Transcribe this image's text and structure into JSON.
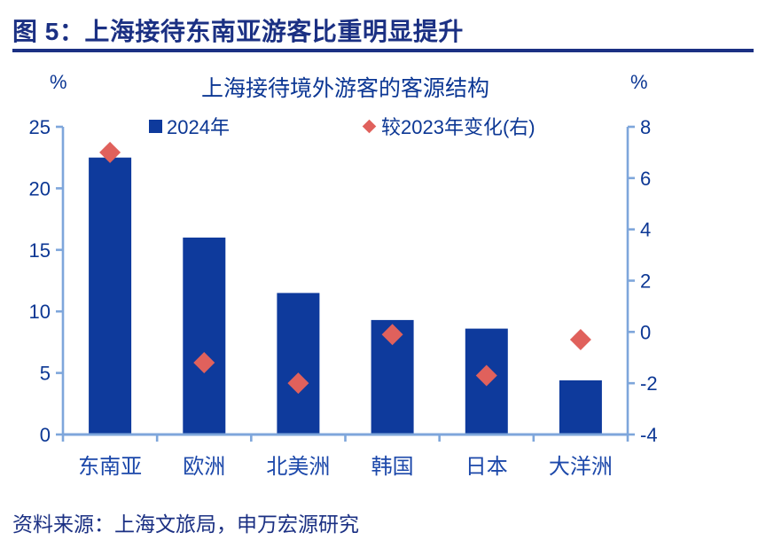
{
  "header": {
    "title": "图 5：上海接待东南亚游客比重明显提升"
  },
  "chart": {
    "title": "上海接待境外游客的客源结构",
    "left_unit": "%",
    "right_unit": "%",
    "legend": [
      {
        "label": "2024年",
        "marker": "square"
      },
      {
        "label": "较2023年变化(右)",
        "marker": "diamond"
      }
    ]
  },
  "chart_data": {
    "type": "bar",
    "title": "上海接待境外游客的客源结构",
    "categories": [
      "东南亚",
      "欧洲",
      "北美洲",
      "韩国",
      "日本",
      "大洋洲"
    ],
    "series": [
      {
        "name": "2024年",
        "type": "bar",
        "axis": "left",
        "values": [
          22.5,
          16.0,
          11.5,
          9.3,
          8.6,
          4.4
        ]
      },
      {
        "name": "较2023年变化(右)",
        "type": "scatter",
        "axis": "right",
        "values": [
          7.0,
          -1.2,
          -2.0,
          -0.1,
          -1.7,
          -0.3
        ]
      }
    ],
    "left_axis": {
      "unit": "%",
      "min": 0,
      "max": 25,
      "ticks": [
        0,
        5,
        10,
        15,
        20,
        25
      ]
    },
    "right_axis": {
      "unit": "%",
      "min": -4,
      "max": 8,
      "ticks": [
        -4,
        -2,
        0,
        2,
        4,
        6,
        8
      ]
    },
    "legend_position": "top",
    "grid": false
  },
  "source": {
    "text": "资料来源：上海文旅局，申万宏源研究"
  },
  "colors": {
    "navy_text": "#1B3083",
    "bar_blue": "#0E3A9C",
    "label_blue": "#0C3794",
    "category_blue": "#1C48AA",
    "axis_blue": "#7EA6DB",
    "diamond_red": "#E0615C"
  }
}
